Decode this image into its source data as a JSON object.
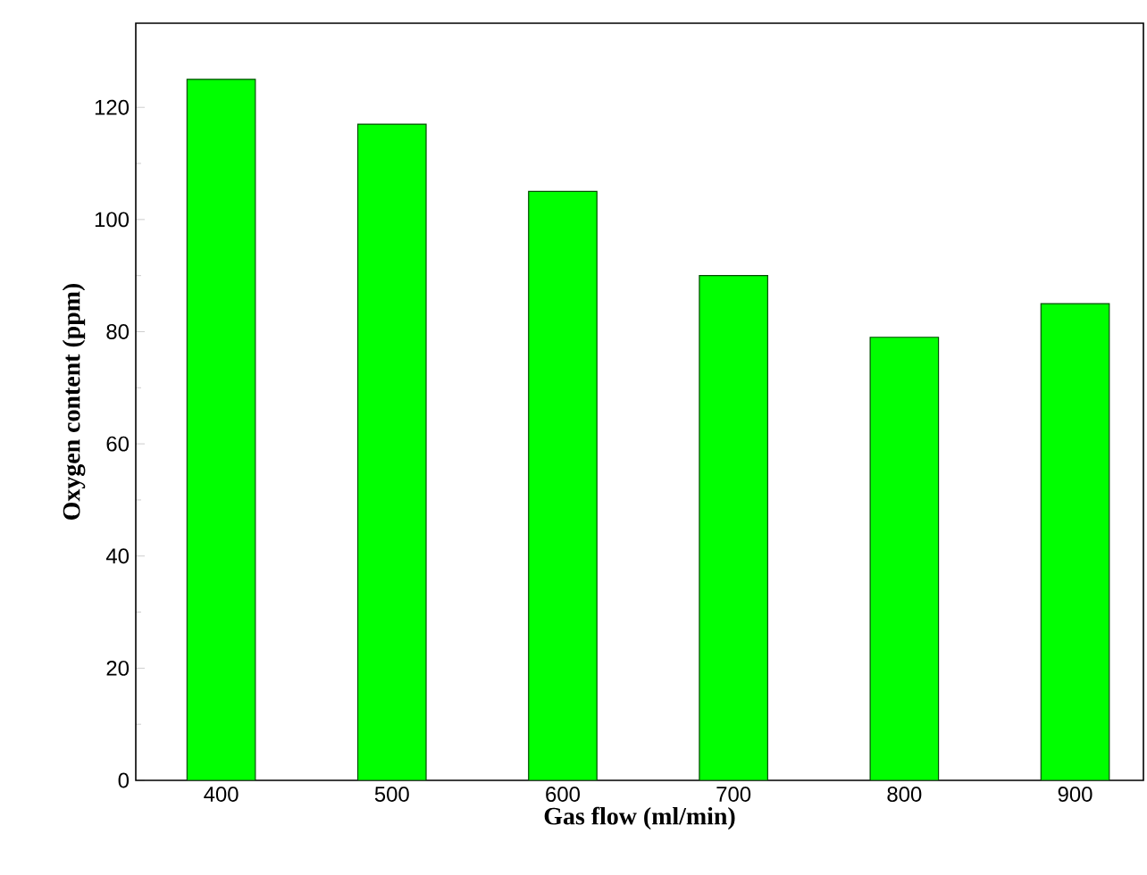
{
  "chart_data": {
    "type": "bar",
    "xlabel": "Gas flow (ml/min)",
    "ylabel": "Oxygen content (ppm)",
    "categories": [
      "400",
      "500",
      "600",
      "700",
      "800",
      "900"
    ],
    "values": [
      125,
      117,
      105,
      90,
      79,
      85
    ],
    "color": "#00ff00",
    "ylim": [
      0,
      135
    ],
    "yticks": [
      0,
      20,
      40,
      60,
      80,
      100,
      120
    ],
    "grid": false
  }
}
